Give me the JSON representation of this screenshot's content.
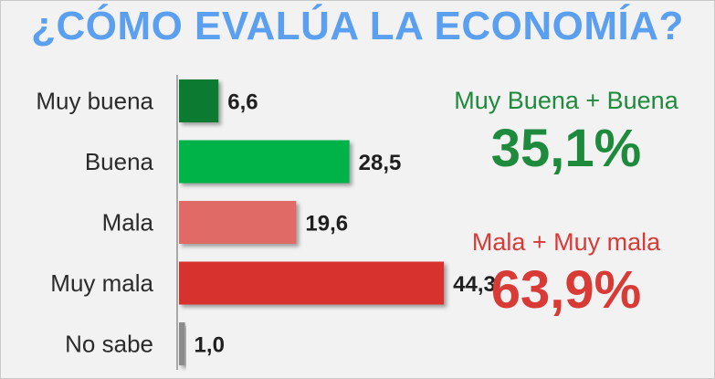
{
  "colors": {
    "title": "#5b9ff0",
    "good_text": "#1e8a3c",
    "bad_text": "#d83a36",
    "axis": "#a8a8a8"
  },
  "chart_data": {
    "type": "bar",
    "orientation": "horizontal",
    "title": "¿CÓMO EVALÚA LA ECONOMÍA?",
    "categories": [
      "Muy buena",
      "Buena",
      "Mala",
      "Muy mala",
      "No sabe"
    ],
    "values": [
      6.6,
      28.5,
      19.6,
      44.3,
      1.0
    ],
    "value_labels": [
      "6,6",
      "28,5",
      "19,6",
      "44,3",
      "1,0"
    ],
    "bar_colors": [
      "#0f7a33",
      "#00b34a",
      "#e06a66",
      "#d8332f",
      "#8c8c8c"
    ],
    "xlim": [
      0,
      50
    ],
    "grid": false,
    "legend": "none"
  },
  "summary": {
    "good": {
      "label": "Muy Buena + Buena",
      "value": "35,1%"
    },
    "bad": {
      "label": "Mala + Muy mala",
      "value": "63,9%"
    }
  }
}
